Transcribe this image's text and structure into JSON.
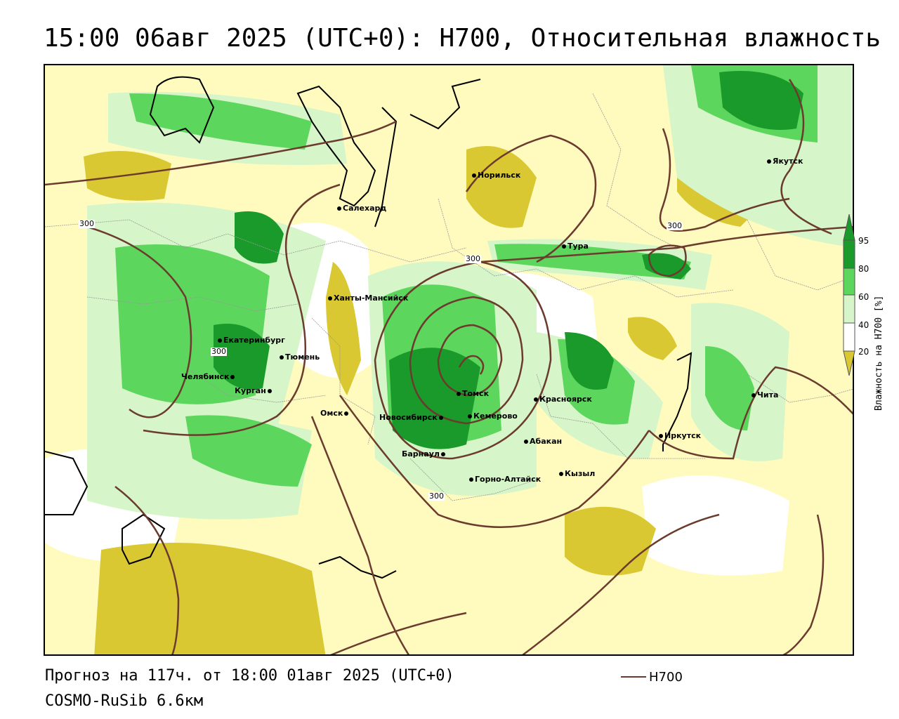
{
  "title": "15:00 06авг 2025 (UTC+0): H700, Относительная влажность",
  "map": {
    "contour_value": "300",
    "cities": [
      {
        "name": "Норильск"
      },
      {
        "name": "Якутск"
      },
      {
        "name": "Салехард"
      },
      {
        "name": "Тура"
      },
      {
        "name": "Ханты-Мансийск"
      },
      {
        "name": "Екатеринбург"
      },
      {
        "name": "Тюмень"
      },
      {
        "name": "Челябинск"
      },
      {
        "name": "Курган"
      },
      {
        "name": "Омск"
      },
      {
        "name": "Новосибирск"
      },
      {
        "name": "Томск"
      },
      {
        "name": "Кемерово"
      },
      {
        "name": "Красноярск"
      },
      {
        "name": "Барнаул"
      },
      {
        "name": "Абакан"
      },
      {
        "name": "Горно-Алтайск"
      },
      {
        "name": "Кызыл"
      },
      {
        "name": "Иркутск"
      },
      {
        "name": "Чита"
      }
    ],
    "colors": {
      "dry_20": "#d9c832",
      "dry_40": "#fffaa0",
      "moist_60": "#d6f5c8",
      "moist_80": "#5cd65c",
      "moist_95": "#1a9a2a",
      "contour": "#6b3b2e"
    }
  },
  "legend": {
    "axis_label": "Влажность на H700 [%]",
    "ticks": [
      "95",
      "80",
      "60",
      "40",
      "20"
    ],
    "fill_levels": [
      95,
      80,
      60,
      40,
      20
    ]
  },
  "footer": {
    "forecast": "Прогноз на 117ч. от 18:00 01авг 2025 (UTC+0)",
    "model": "COSMO-RuSib 6.6км",
    "line_legend": "H700"
  }
}
